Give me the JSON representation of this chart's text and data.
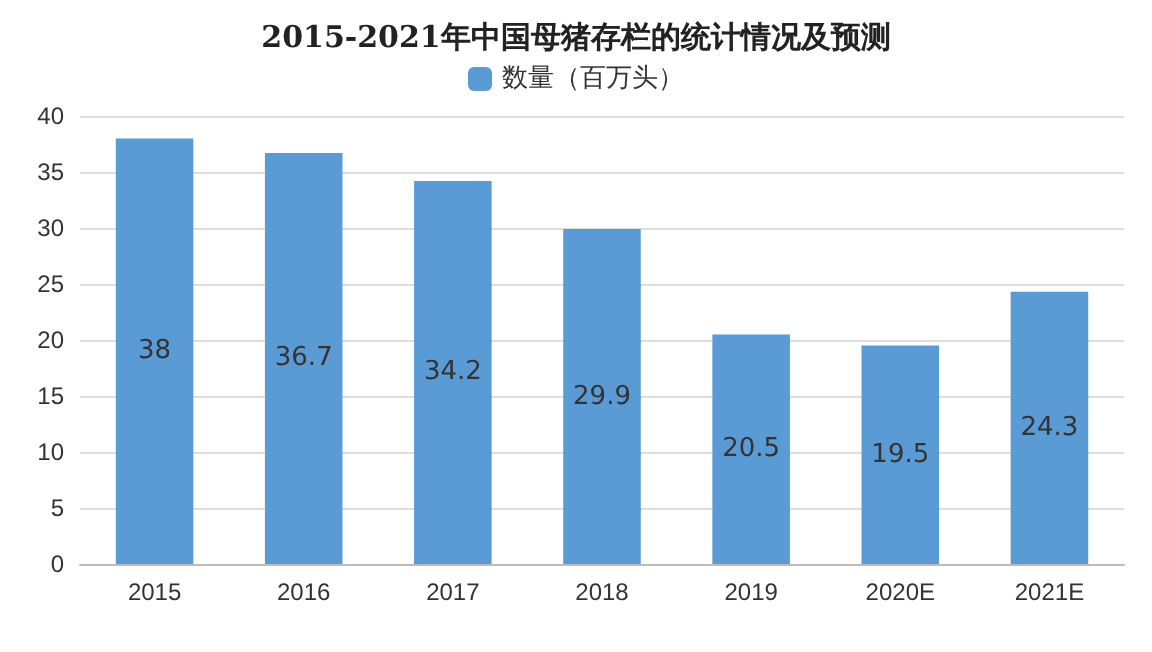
{
  "chart_data": {
    "type": "bar",
    "title": "2015-2021年中国母猪存栏的统计情况及预测",
    "categories": [
      "2015",
      "2016",
      "2017",
      "2018",
      "2019",
      "2020E",
      "2021E"
    ],
    "series": [
      {
        "name": "数量（百万头）",
        "color": "#5b9bd5",
        "values": [
          38,
          36.7,
          34.2,
          29.9,
          20.5,
          19.5,
          24.3
        ]
      }
    ],
    "ylim": [
      0,
      40
    ],
    "yticks": [
      0,
      5,
      10,
      15,
      20,
      25,
      30,
      35,
      40
    ],
    "grid": "y",
    "legend": "top",
    "data_labels": true
  }
}
